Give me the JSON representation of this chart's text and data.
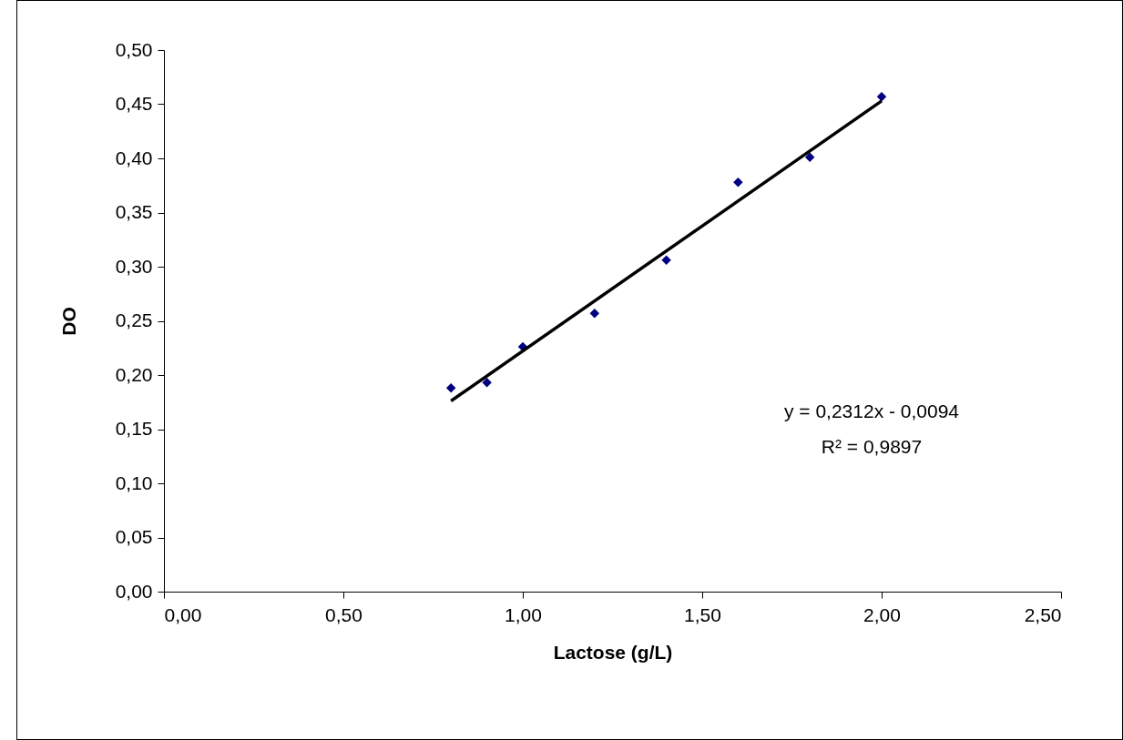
{
  "chart_data": {
    "type": "scatter",
    "xlabel": "Lactose (g/L)",
    "ylabel": "DO",
    "xlim": [
      0,
      2.5
    ],
    "ylim": [
      0,
      0.5
    ],
    "xticks": [
      {
        "value": 0,
        "label": "0,00"
      },
      {
        "value": 0.5,
        "label": "0,50"
      },
      {
        "value": 1,
        "label": "1,00"
      },
      {
        "value": 1.5,
        "label": "1,50"
      },
      {
        "value": 2,
        "label": "2,00"
      },
      {
        "value": 2.5,
        "label": "2,50"
      }
    ],
    "yticks": [
      {
        "value": 0,
        "label": "0,00"
      },
      {
        "value": 0.05,
        "label": "0,05"
      },
      {
        "value": 0.1,
        "label": "0,10"
      },
      {
        "value": 0.15,
        "label": "0,15"
      },
      {
        "value": 0.2,
        "label": "0,20"
      },
      {
        "value": 0.25,
        "label": "0,25"
      },
      {
        "value": 0.3,
        "label": "0,30"
      },
      {
        "value": 0.35,
        "label": "0,35"
      },
      {
        "value": 0.4,
        "label": "0,40"
      },
      {
        "value": 0.45,
        "label": "0,45"
      },
      {
        "value": 0.5,
        "label": "0,50"
      }
    ],
    "x": [
      0.8,
      0.9,
      1.0,
      1.2,
      1.4,
      1.6,
      1.8,
      2.0
    ],
    "series": [
      {
        "color": "#000080",
        "marker": "diamond",
        "values": [
          0.188,
          0.193,
          0.226,
          0.257,
          0.306,
          0.378,
          0.401,
          0.457
        ]
      },
      {
        "type": "line",
        "color": "#000000",
        "x": [
          0.8,
          2.0
        ],
        "values": [
          0.176,
          0.453
        ],
        "line_style": "solid"
      }
    ],
    "annotations": [
      "y = 0,2312x - 0,0094",
      "R² = 0,9897"
    ]
  }
}
